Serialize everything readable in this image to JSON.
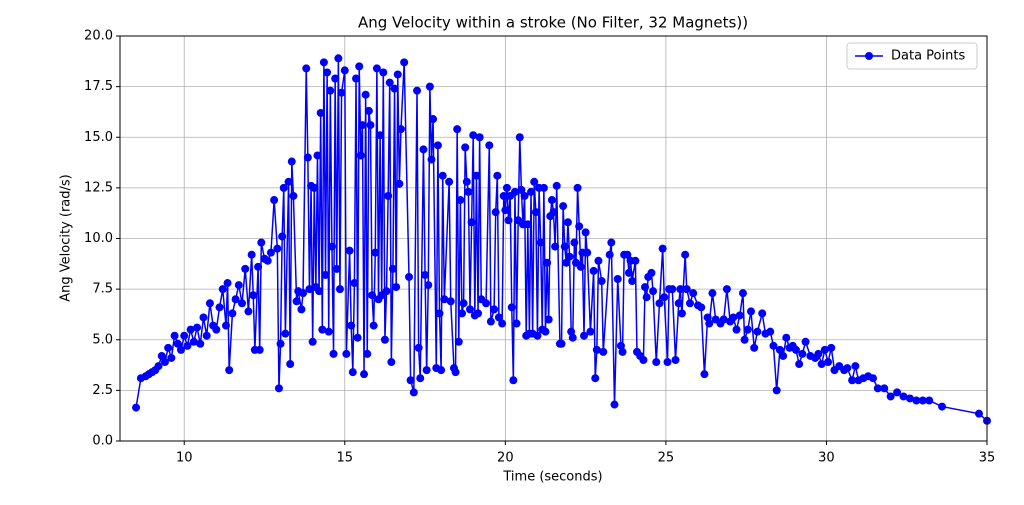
{
  "chart_data": {
    "type": "line",
    "title": "Ang Velocity within a stroke (No Filter, 32 Magnets))",
    "x_label": "Time (seconds)",
    "y_label": "Ang Velocity (rad/s)",
    "xlim": [
      8,
      35
    ],
    "ylim": [
      0,
      20
    ],
    "xticks": [
      10,
      15,
      20,
      25,
      30,
      35
    ],
    "yticks": [
      {
        "value": 0,
        "label": "0.0"
      },
      {
        "value": 2.5,
        "label": "2.5"
      },
      {
        "value": 5,
        "label": "5.0"
      },
      {
        "value": 7.5,
        "label": "7.5"
      },
      {
        "value": 10,
        "label": "10.0"
      },
      {
        "value": 12.5,
        "label": "12.5"
      },
      {
        "value": 15,
        "label": "15.0"
      },
      {
        "value": 17.5,
        "label": "17.5"
      },
      {
        "value": 20,
        "label": "20.0"
      }
    ],
    "grid": true,
    "legend": "upper right",
    "x": [
      8.5,
      8.65,
      8.8,
      8.9,
      9.0,
      9.1,
      9.2,
      9.3,
      9.4,
      9.5,
      9.6,
      9.7,
      9.8,
      9.9,
      10.0,
      10.1,
      10.2,
      10.3,
      10.4,
      10.5,
      10.6,
      10.7,
      10.8,
      10.9,
      11.0,
      11.1,
      11.2,
      11.3,
      11.35,
      11.4,
      11.5,
      11.6,
      11.7,
      11.8,
      11.9,
      12.0,
      12.1,
      12.15,
      12.2,
      12.3,
      12.35,
      12.4,
      12.5,
      12.6,
      12.7,
      12.8,
      12.9,
      12.95,
      13.0,
      13.05,
      13.1,
      13.15,
      13.25,
      13.3,
      13.35,
      13.4,
      13.5,
      13.55,
      13.65,
      13.7,
      13.8,
      13.85,
      13.9,
      13.95,
      14.0,
      14.05,
      14.1,
      14.15,
      14.2,
      14.25,
      14.3,
      14.35,
      14.4,
      14.45,
      14.5,
      14.55,
      14.6,
      14.65,
      14.7,
      14.75,
      14.8,
      14.85,
      14.9,
      15.0,
      15.05,
      15.15,
      15.2,
      15.25,
      15.3,
      15.35,
      15.4,
      15.45,
      15.5,
      15.55,
      15.6,
      15.65,
      15.7,
      15.75,
      15.8,
      15.85,
      15.9,
      15.95,
      16.0,
      16.05,
      16.1,
      16.15,
      16.2,
      16.25,
      16.3,
      16.35,
      16.4,
      16.45,
      16.5,
      16.55,
      16.6,
      16.65,
      16.7,
      16.75,
      16.85,
      17.0,
      17.05,
      17.15,
      17.25,
      17.3,
      17.35,
      17.45,
      17.5,
      17.55,
      17.6,
      17.65,
      17.7,
      17.75,
      17.85,
      17.9,
      17.95,
      18.0,
      18.05,
      18.1,
      18.25,
      18.3,
      18.4,
      18.45,
      18.5,
      18.55,
      18.6,
      18.65,
      18.7,
      18.75,
      18.8,
      18.85,
      18.9,
      18.95,
      19.0,
      19.05,
      19.1,
      19.15,
      19.2,
      19.25,
      19.4,
      19.5,
      19.55,
      19.65,
      19.7,
      19.75,
      19.8,
      19.9,
      19.95,
      20.0,
      20.05,
      20.1,
      20.15,
      20.2,
      20.25,
      20.3,
      20.35,
      20.4,
      20.45,
      20.5,
      20.55,
      20.6,
      20.65,
      20.7,
      20.75,
      20.8,
      20.85,
      20.9,
      20.95,
      21.0,
      21.05,
      21.1,
      21.15,
      21.2,
      21.25,
      21.3,
      21.35,
      21.4,
      21.45,
      21.5,
      21.55,
      21.6,
      21.7,
      21.75,
      21.8,
      21.85,
      21.9,
      21.95,
      22.0,
      22.05,
      22.1,
      22.15,
      22.2,
      22.25,
      22.3,
      22.35,
      22.4,
      22.45,
      22.5,
      22.55,
      22.65,
      22.75,
      22.8,
      22.85,
      22.9,
      23.0,
      23.05,
      23.25,
      23.3,
      23.4,
      23.5,
      23.6,
      23.65,
      23.7,
      23.8,
      23.85,
      23.9,
      23.95,
      24.05,
      24.1,
      24.2,
      24.3,
      24.35,
      24.4,
      24.45,
      24.55,
      24.6,
      24.7,
      24.8,
      24.9,
      24.95,
      25.05,
      25.1,
      25.2,
      25.3,
      25.4,
      25.45,
      25.5,
      25.6,
      25.65,
      25.75,
      25.85,
      26.0,
      26.1,
      26.2,
      26.3,
      26.35,
      26.45,
      26.55,
      26.7,
      26.8,
      26.9,
      27.0,
      27.1,
      27.2,
      27.3,
      27.4,
      27.45,
      27.55,
      27.65,
      27.75,
      27.85,
      28.0,
      28.1,
      28.25,
      28.35,
      28.45,
      28.55,
      28.65,
      28.75,
      28.85,
      28.95,
      29.05,
      29.15,
      29.25,
      29.35,
      29.5,
      29.65,
      29.75,
      29.85,
      29.95,
      30.05,
      30.15,
      30.25,
      30.4,
      30.55,
      30.65,
      30.8,
      30.9,
      31.0,
      31.15,
      31.3,
      31.45,
      31.6,
      31.8,
      32.0,
      32.2,
      32.4,
      32.6,
      32.8,
      33.0,
      33.2,
      33.6,
      34.75,
      35.0
    ],
    "series": [
      {
        "name": "Data Points",
        "color": "#0000ff",
        "values": [
          1.65,
          3.1,
          3.2,
          3.3,
          3.4,
          3.5,
          3.7,
          4.2,
          3.9,
          4.6,
          4.1,
          5.2,
          4.8,
          4.5,
          5.2,
          4.7,
          5.5,
          4.9,
          5.6,
          4.8,
          6.1,
          5.2,
          6.8,
          5.7,
          5.5,
          6.6,
          7.5,
          5.7,
          7.8,
          3.5,
          6.3,
          7.0,
          7.7,
          6.8,
          8.5,
          6.4,
          9.2,
          7.2,
          4.5,
          8.6,
          4.5,
          9.8,
          9.0,
          8.9,
          9.3,
          11.9,
          9.5,
          2.6,
          4.8,
          10.1,
          12.5,
          5.3,
          12.8,
          3.8,
          13.8,
          12.1,
          6.9,
          7.4,
          6.5,
          7.3,
          18.4,
          14.0,
          7.5,
          12.6,
          4.9,
          12.5,
          7.6,
          14.1,
          7.4,
          16.2,
          5.5,
          18.7,
          8.2,
          18.2,
          5.4,
          17.3,
          9.6,
          4.3,
          17.9,
          8.5,
          18.9,
          7.5,
          17.2,
          18.3,
          4.3,
          9.4,
          5.7,
          3.4,
          7.8,
          17.9,
          5.1,
          18.5,
          14.1,
          15.6,
          3.3,
          17.1,
          4.3,
          16.3,
          15.6,
          7.2,
          5.7,
          9.3,
          18.4,
          7.0,
          15.1,
          7.2,
          18.2,
          5.0,
          7.4,
          12.1,
          17.7,
          3.9,
          8.5,
          17.4,
          7.6,
          18.1,
          12.7,
          15.4,
          18.7,
          8.1,
          3.0,
          2.4,
          17.3,
          4.6,
          3.1,
          14.4,
          8.2,
          3.5,
          7.7,
          17.5,
          13.9,
          15.9,
          3.6,
          14.6,
          6.3,
          3.5,
          13.1,
          7.0,
          12.8,
          6.9,
          3.6,
          3.4,
          15.4,
          4.9,
          11.9,
          6.3,
          6.8,
          14.5,
          12.8,
          12.3,
          6.5,
          10.8,
          15.1,
          6.2,
          13.1,
          6.3,
          15.0,
          7.0,
          6.8,
          14.6,
          5.9,
          6.5,
          11.3,
          13.1,
          6.1,
          5.8,
          12.1,
          11.4,
          12.5,
          10.9,
          12.1,
          6.6,
          3.0,
          12.3,
          5.8,
          10.9,
          15.0,
          12.4,
          10.7,
          12.1,
          5.2,
          10.7,
          5.3,
          12.3,
          5.3,
          12.8,
          11.3,
          5.2,
          12.5,
          9.8,
          5.5,
          12.5,
          5.4,
          8.8,
          6.0,
          11.1,
          11.9,
          11.3,
          9.6,
          12.6,
          4.8,
          4.8,
          11.6,
          9.6,
          8.8,
          10.8,
          9.1,
          5.4,
          5.1,
          9.8,
          8.8,
          12.5,
          10.6,
          8.6,
          9.3,
          5.2,
          10.3,
          9.3,
          5.4,
          8.4,
          3.1,
          4.5,
          8.9,
          7.9,
          4.4,
          9.2,
          9.8,
          1.8,
          8.0,
          4.7,
          4.4,
          9.2,
          9.2,
          8.3,
          8.9,
          7.9,
          8.9,
          4.4,
          4.2,
          4.0,
          7.6,
          7.1,
          8.1,
          8.3,
          7.4,
          3.9,
          6.8,
          9.5,
          7.1,
          3.9,
          7.5,
          7.5,
          4.0,
          6.8,
          7.5,
          6.3,
          9.2,
          7.5,
          6.8,
          7.3,
          6.7,
          6.6,
          3.3,
          6.1,
          5.8,
          7.3,
          6.0,
          5.8,
          6.0,
          7.5,
          5.9,
          6.1,
          5.5,
          6.2,
          7.3,
          5.0,
          5.5,
          6.4,
          4.6,
          5.4,
          6.3,
          5.3,
          5.4,
          4.7,
          2.5,
          4.5,
          4.2,
          5.1,
          4.6,
          4.7,
          4.5,
          3.8,
          4.3,
          4.9,
          4.2,
          4.1,
          4.3,
          3.8,
          4.5,
          3.9,
          4.6,
          3.5,
          3.7,
          3.5,
          3.6,
          3.0,
          3.7,
          3.0,
          3.1,
          3.2,
          3.1,
          2.6,
          2.6,
          2.2,
          2.4,
          2.2,
          2.1,
          2.0,
          2.0,
          2.0,
          1.7,
          1.35,
          1.0
        ]
      }
    ]
  }
}
